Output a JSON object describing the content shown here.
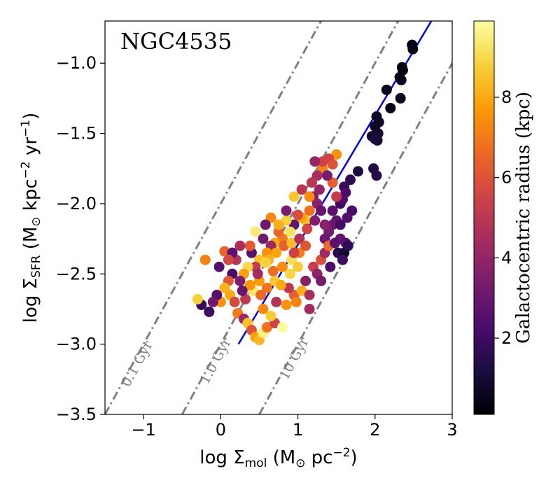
{
  "chart_data": {
    "type": "scatter",
    "title": "NGC4535",
    "xlabel": {
      "prefix": "log Σ",
      "sub": "mol",
      "unit_open": " (M",
      "sun": "⊙",
      "unit_mid": " pc",
      "sup": "−2",
      "unit_close": ")"
    },
    "ylabel": {
      "prefix": "log Σ",
      "sub": "SFR",
      "unit_open": " (M",
      "sun": "⊙",
      "unit_mid": " kpc",
      "sup1": "−2",
      "unit_mid2": " yr",
      "sup2": "−1",
      "unit_close": ")"
    },
    "xlim": [
      -1.5,
      3.0
    ],
    "ylim": [
      -3.5,
      -0.7
    ],
    "xticks": [
      {
        "v": -1,
        "label": "−1"
      },
      {
        "v": 0,
        "label": "0"
      },
      {
        "v": 1,
        "label": "1"
      },
      {
        "v": 2,
        "label": "2"
      },
      {
        "v": 3,
        "label": "3"
      }
    ],
    "yticks": [
      {
        "v": -1.0,
        "label": "−1.0"
      },
      {
        "v": -1.5,
        "label": "−1.5"
      },
      {
        "v": -2.0,
        "label": "−2.0"
      },
      {
        "v": -2.5,
        "label": "−2.5"
      },
      {
        "v": -3.0,
        "label": "−3.0"
      },
      {
        "v": -3.5,
        "label": "−3.5"
      }
    ],
    "colorbar": {
      "label": "Galactocentric radius (kpc)",
      "range": [
        0.1,
        9.9
      ],
      "ticks": [
        {
          "v": 2,
          "label": "2"
        },
        {
          "v": 4,
          "label": "4"
        },
        {
          "v": 6,
          "label": "6"
        },
        {
          "v": 8,
          "label": "8"
        }
      ],
      "colormap": [
        "#000004",
        "#1b0c41",
        "#4a0c6b",
        "#781c6d",
        "#a52c60",
        "#cf4446",
        "#ed6925",
        "#fb9b06",
        "#f7d13d",
        "#fcffa4"
      ]
    },
    "depletion_lines": [
      {
        "label": "0.1 Gyr",
        "tdep_gyr": 0.1
      },
      {
        "label": "1.0 Gyr",
        "tdep_gyr": 1.0
      },
      {
        "label": "10 Gyr",
        "tdep_gyr": 10
      }
    ],
    "fit_line": {
      "color": "#0000ee",
      "points": [
        [
          0.23,
          -3.0
        ],
        [
          2.73,
          -0.7
        ]
      ]
    },
    "points": [
      [
        2.48,
        -0.87,
        0.3
      ],
      [
        2.49,
        -0.9,
        0.4
      ],
      [
        2.35,
        -1.03,
        0.3
      ],
      [
        2.36,
        -1.05,
        0.35
      ],
      [
        2.32,
        -1.1,
        0.4
      ],
      [
        2.34,
        -1.12,
        0.5
      ],
      [
        2.15,
        -1.19,
        0.5
      ],
      [
        2.33,
        -1.25,
        0.6
      ],
      [
        2.2,
        -1.32,
        0.5
      ],
      [
        2.02,
        -1.38,
        0.7
      ],
      [
        2.05,
        -1.42,
        0.8
      ],
      [
        2.0,
        -1.45,
        0.6
      ],
      [
        2.04,
        -1.5,
        0.9
      ],
      [
        1.96,
        -1.52,
        0.8
      ],
      [
        2.03,
        -1.55,
        1.0
      ],
      [
        2.0,
        -1.54,
        1.1
      ],
      [
        1.98,
        -1.75,
        1.3
      ],
      [
        1.78,
        -1.77,
        1.2
      ],
      [
        2.02,
        -1.8,
        1.4
      ],
      [
        1.68,
        -1.83,
        1.6
      ],
      [
        1.6,
        -1.88,
        1.8
      ],
      [
        1.62,
        -1.92,
        2.3
      ],
      [
        1.55,
        -2.0,
        2.0
      ],
      [
        1.58,
        -1.97,
        2.4
      ],
      [
        1.7,
        -2.05,
        2.2
      ],
      [
        1.64,
        -2.1,
        2.5
      ],
      [
        1.5,
        -2.12,
        2.8
      ],
      [
        1.45,
        -2.15,
        3.0
      ],
      [
        1.4,
        -2.2,
        3.3
      ],
      [
        1.55,
        -2.25,
        2.9
      ],
      [
        1.62,
        -2.28,
        2.6
      ],
      [
        1.52,
        -2.35,
        1.5
      ],
      [
        1.35,
        -2.25,
        3.1
      ],
      [
        1.6,
        -2.35,
        0.9
      ],
      [
        1.65,
        -2.3,
        1.7
      ],
      [
        1.5,
        -1.65,
        7.5
      ],
      [
        1.4,
        -1.68,
        5.5
      ],
      [
        1.45,
        -1.72,
        6.0
      ],
      [
        1.32,
        -1.75,
        7.2
      ],
      [
        1.25,
        -1.8,
        4.5
      ],
      [
        1.18,
        -1.85,
        5.0
      ],
      [
        1.2,
        -1.95,
        3.5
      ],
      [
        1.28,
        -1.9,
        4.0
      ],
      [
        1.32,
        -1.7,
        5.5
      ],
      [
        1.15,
        -2.05,
        6.8
      ],
      [
        1.25,
        -2.0,
        3.8
      ],
      [
        1.1,
        -2.12,
        8.5
      ],
      [
        1.05,
        -2.1,
        7.8
      ],
      [
        1.0,
        -2.08,
        5.8
      ],
      [
        0.95,
        -2.15,
        2.8
      ],
      [
        0.85,
        -2.12,
        8.8
      ],
      [
        0.9,
        -2.2,
        9.2
      ],
      [
        0.8,
        -2.25,
        7.0
      ],
      [
        0.75,
        -2.2,
        6.5
      ],
      [
        0.7,
        -2.28,
        8.0
      ],
      [
        0.65,
        -2.3,
        4.2
      ],
      [
        0.55,
        -2.25,
        3.2
      ],
      [
        0.6,
        -2.35,
        7.5
      ],
      [
        0.5,
        -2.4,
        8.5
      ],
      [
        0.45,
        -2.45,
        5.2
      ],
      [
        0.4,
        -2.35,
        2.6
      ],
      [
        0.35,
        -2.45,
        9.0
      ],
      [
        0.3,
        -2.5,
        7.8
      ],
      [
        0.25,
        -2.55,
        3.5
      ],
      [
        0.2,
        -2.4,
        4.8
      ],
      [
        0.15,
        -2.5,
        2.2
      ],
      [
        0.1,
        -2.55,
        6.2
      ],
      [
        0.05,
        -2.6,
        8.2
      ],
      [
        0.0,
        -2.7,
        7.5
      ],
      [
        -0.05,
        -2.65,
        2.5
      ],
      [
        -0.1,
        -2.7,
        3.2
      ],
      [
        -0.15,
        -2.77,
        2.0
      ],
      [
        -0.25,
        -2.72,
        1.8
      ],
      [
        -0.3,
        -2.68,
        8.8
      ],
      [
        -0.2,
        -2.4,
        7.2
      ],
      [
        0.05,
        -2.34,
        6.5
      ],
      [
        -0.02,
        -2.45,
        2.5
      ],
      [
        0.12,
        -2.65,
        8.0
      ],
      [
        0.18,
        -2.7,
        5.8
      ],
      [
        0.22,
        -2.78,
        7.0
      ],
      [
        0.3,
        -2.82,
        4.2
      ],
      [
        0.35,
        -2.85,
        8.5
      ],
      [
        0.4,
        -2.9,
        6.0
      ],
      [
        0.45,
        -2.95,
        7.8
      ],
      [
        0.5,
        -2.97,
        8.3
      ],
      [
        0.55,
        -2.92,
        9.5
      ],
      [
        0.6,
        -2.88,
        6.8
      ],
      [
        0.7,
        -2.85,
        5.5
      ],
      [
        0.8,
        -2.88,
        9.8
      ],
      [
        0.65,
        -2.8,
        8.7
      ],
      [
        0.55,
        -2.75,
        7.3
      ],
      [
        0.72,
        -2.7,
        4.8
      ],
      [
        0.85,
        -2.72,
        7.6
      ],
      [
        0.95,
        -2.65,
        6.3
      ],
      [
        1.05,
        -2.62,
        8.1
      ],
      [
        1.1,
        -2.55,
        3.7
      ],
      [
        1.15,
        -2.65,
        4.6
      ],
      [
        1.2,
        -2.45,
        5.3
      ],
      [
        1.25,
        -2.5,
        3.9
      ],
      [
        1.3,
        -2.4,
        5.9
      ],
      [
        1.35,
        -2.35,
        4.3
      ],
      [
        1.4,
        -2.3,
        6.6
      ],
      [
        0.9,
        -2.5,
        8.9
      ],
      [
        0.8,
        -2.45,
        7.4
      ],
      [
        0.7,
        -2.55,
        8.6
      ],
      [
        0.6,
        -2.6,
        6.9
      ],
      [
        0.5,
        -2.55,
        7.7
      ],
      [
        0.42,
        -2.62,
        9.3
      ],
      [
        0.32,
        -2.68,
        5.1
      ],
      [
        0.62,
        -2.4,
        8.2
      ],
      [
        0.72,
        -2.35,
        7.9
      ],
      [
        0.82,
        -2.3,
        6.4
      ],
      [
        0.92,
        -2.28,
        8.4
      ],
      [
        1.02,
        -2.25,
        4.7
      ],
      [
        1.12,
        -2.18,
        5.6
      ],
      [
        1.22,
        -2.12,
        3.6
      ],
      [
        1.02,
        -2.35,
        7.1
      ],
      [
        0.92,
        -2.4,
        9.1
      ],
      [
        0.88,
        -2.6,
        5.0
      ],
      [
        0.78,
        -2.58,
        8.0
      ],
      [
        0.68,
        -2.48,
        6.7
      ],
      [
        0.58,
        -2.42,
        8.8
      ],
      [
        0.48,
        -2.5,
        4.4
      ],
      [
        0.38,
        -2.58,
        7.6
      ],
      [
        0.28,
        -2.62,
        3.0
      ],
      [
        1.1,
        -2.3,
        6.1
      ],
      [
        1.0,
        -2.45,
        8.7
      ],
      [
        0.95,
        -2.35,
        5.4
      ],
      [
        0.75,
        -2.15,
        8.1
      ],
      [
        0.65,
        -2.1,
        7.3
      ],
      [
        0.85,
        -2.05,
        3.4
      ],
      [
        0.95,
        -1.95,
        8.6
      ],
      [
        1.05,
        -1.9,
        4.9
      ],
      [
        1.15,
        -1.95,
        7.4
      ],
      [
        1.3,
        -2.05,
        2.9
      ],
      [
        1.35,
        -2.15,
        3.8
      ],
      [
        1.45,
        -2.05,
        2.6
      ],
      [
        1.5,
        -1.95,
        5.2
      ],
      [
        1.45,
        -1.85,
        6.3
      ],
      [
        1.38,
        -1.8,
        3.4
      ],
      [
        1.22,
        -1.7,
        4.1
      ],
      [
        1.42,
        -2.45,
        2.3
      ],
      [
        1.3,
        -2.55,
        3.3
      ],
      [
        1.15,
        -2.75,
        4.4
      ],
      [
        0.98,
        -2.7,
        7.2
      ],
      [
        0.52,
        -2.65,
        6.6
      ],
      [
        0.45,
        -2.2,
        9.4
      ],
      [
        0.58,
        -2.15,
        3.1
      ],
      [
        0.38,
        -2.3,
        6.2
      ],
      [
        0.25,
        -2.3,
        4.6
      ],
      [
        0.15,
        -2.35,
        2.7
      ],
      [
        0.1,
        -2.4,
        5.7
      ],
      [
        1.55,
        -2.15,
        2.1
      ],
      [
        1.58,
        -2.4,
        1.9
      ],
      [
        1.48,
        -2.28,
        2.7
      ]
    ]
  }
}
